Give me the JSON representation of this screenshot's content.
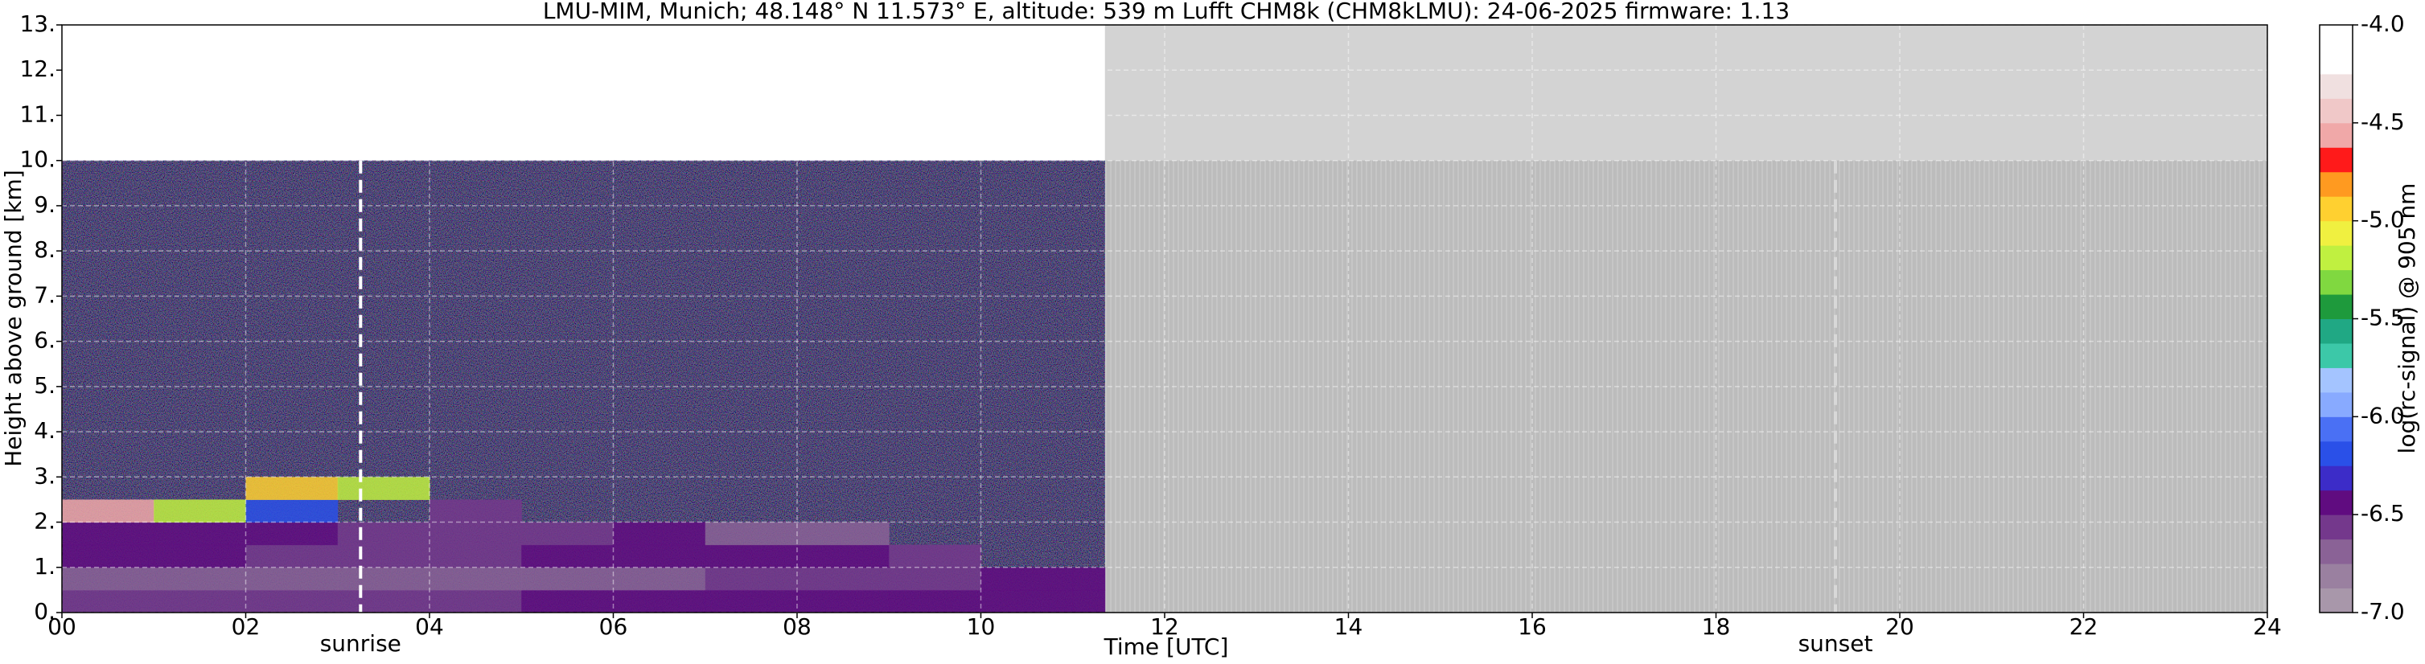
{
  "chart_data": {
    "type": "heatmap",
    "title": "LMU-MIM, Munich; 48.148° N 11.573° E, altitude: 539 m    Lufft CHM8k (CHM8kLMU): 24-06-2025    firmware: 1.13",
    "xlabel": "Time [UTC]",
    "ylabel": "Height above ground [km]",
    "xlim": [
      0,
      24
    ],
    "xticks": [
      {
        "value": 0,
        "label": "00"
      },
      {
        "value": 2,
        "label": "02"
      },
      {
        "value": 4,
        "label": "04"
      },
      {
        "value": 6,
        "label": "06"
      },
      {
        "value": 8,
        "label": "08"
      },
      10,
      12,
      14,
      16,
      18,
      20,
      22,
      24
    ],
    "ylim": [
      0,
      13
    ],
    "yticks": [
      {
        "value": 0,
        "label": "0."
      },
      {
        "value": 1,
        "label": "1."
      },
      {
        "value": 2,
        "label": "2."
      },
      {
        "value": 3,
        "label": "3."
      },
      {
        "value": 4,
        "label": "4."
      },
      {
        "value": 5,
        "label": "5."
      },
      {
        "value": 6,
        "label": "6."
      },
      {
        "value": 7,
        "label": "7."
      },
      {
        "value": 8,
        "label": "8."
      },
      {
        "value": 9,
        "label": "9."
      },
      {
        "value": 10,
        "label": "10."
      },
      {
        "value": 11,
        "label": "11."
      },
      {
        "value": 12,
        "label": "12."
      },
      {
        "value": 13,
        "label": "13."
      }
    ],
    "grid": true,
    "x_edges": [
      0,
      1,
      2,
      3,
      4,
      5,
      6,
      7,
      8,
      9,
      10,
      11,
      11.35
    ],
    "y_edges": [
      0,
      0.5,
      1,
      1.5,
      2,
      2.5,
      3,
      4,
      5,
      6,
      7,
      8,
      9,
      10
    ],
    "z": [
      [
        -6.55,
        -6.55,
        -6.6,
        -6.6,
        -6.55,
        -6.5,
        -6.5,
        -6.45,
        -6.45,
        -6.45,
        -6.4,
        -6.4
      ],
      [
        -6.7,
        -6.7,
        -6.7,
        -6.75,
        -6.7,
        -6.7,
        -6.65,
        -6.6,
        -6.55,
        -6.55,
        -6.5,
        -6.5
      ],
      [
        -6.5,
        -6.5,
        -6.55,
        -6.6,
        -6.55,
        -6.5,
        -6.45,
        -6.45,
        -6.5,
        -6.55,
        null,
        null
      ],
      [
        -6.45,
        -6.5,
        -6.5,
        -6.55,
        -6.55,
        -6.6,
        -6.5,
        -6.65,
        -6.7,
        null,
        null,
        null
      ],
      [
        -4.6,
        -5.2,
        -6.2,
        null,
        -6.6,
        null,
        null,
        null,
        null,
        null,
        null,
        null
      ],
      [
        null,
        null,
        -5.0,
        -5.2,
        null,
        null,
        null,
        null,
        null,
        null,
        null,
        null
      ],
      [
        null,
        null,
        null,
        null,
        null,
        null,
        null,
        null,
        null,
        null,
        null,
        null
      ],
      [
        null,
        null,
        null,
        null,
        null,
        null,
        null,
        null,
        null,
        null,
        null,
        null
      ],
      [
        null,
        null,
        null,
        null,
        null,
        null,
        null,
        null,
        null,
        null,
        null,
        null
      ],
      [
        null,
        null,
        null,
        null,
        null,
        null,
        null,
        null,
        null,
        null,
        null,
        null
      ],
      [
        null,
        null,
        null,
        null,
        null,
        null,
        null,
        null,
        null,
        null,
        null,
        null
      ],
      [
        null,
        null,
        null,
        null,
        null,
        null,
        null,
        null,
        null,
        null,
        null,
        null
      ],
      [
        null,
        null,
        null,
        null,
        null,
        null,
        null,
        null,
        null,
        null,
        null,
        null
      ]
    ],
    "colorbar": {
      "label": "log(rc-signal) @ 905 nm",
      "lim": [
        -7,
        -4
      ],
      "ticks": [
        {
          "value": -7,
          "label": "-7.0"
        },
        -6.5,
        {
          "value": -6,
          "label": "-6.0"
        },
        -5.5,
        {
          "value": -5,
          "label": "-5.0"
        },
        -4.5,
        {
          "value": -4,
          "label": "-4.0"
        }
      ],
      "colors": [
        "#a897aa",
        "#9a80a0",
        "#8a6296",
        "#74388c",
        "#600c80",
        "#3c2cc8",
        "#2a50e8",
        "#4a70f4",
        "#88aaff",
        "#a4c4ff",
        "#3cc8a8",
        "#20a884",
        "#1e9a3c",
        "#80d840",
        "#c0f040",
        "#f0f040",
        "#ffd030",
        "#ff9a20",
        "#ff1a1a",
        "#f0a8a8",
        "#f0c8c8",
        "#f0e0e0",
        "#ffffff",
        "#ffffff"
      ]
    },
    "annotations": [
      {
        "text": "sunrise",
        "x": 3.25,
        "color": "#ffffff"
      },
      {
        "text": "sunset",
        "x": 19.3,
        "color": "#d8d8d8"
      }
    ]
  }
}
